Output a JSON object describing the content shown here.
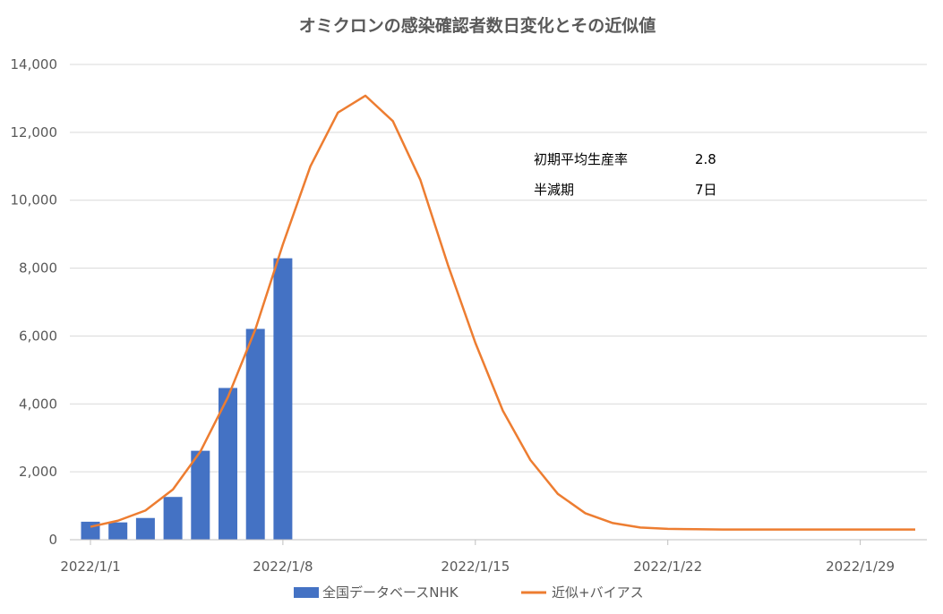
{
  "chart_data": {
    "type": "bar+line",
    "title": "オミクロンの感染確認者数日変化とその近似値",
    "ylim": [
      0,
      14000
    ],
    "y_ticks": [
      "0",
      "2,000",
      "4,000",
      "6,000",
      "8,000",
      "10,000",
      "12,000",
      "14,000"
    ],
    "y_tick_values": [
      0,
      2000,
      4000,
      6000,
      8000,
      10000,
      12000,
      14000
    ],
    "x_tick_labels": [
      "2022/1/1",
      "2022/1/8",
      "2022/1/15",
      "2022/1/22",
      "2022/1/29"
    ],
    "x_tick_dates": [
      "2022-01-01",
      "2022-01-08",
      "2022-01-15",
      "2022-01-22",
      "2022-01-29"
    ],
    "x_range": [
      "2022-01-01",
      "2022-01-31"
    ],
    "grid": true,
    "legend_placement": "bottom",
    "series": [
      {
        "name": "全国データベースNHK",
        "kind": "bar",
        "color": "#4472C4",
        "x": [
          "2022-01-01",
          "2022-01-02",
          "2022-01-03",
          "2022-01-04",
          "2022-01-05",
          "2022-01-06",
          "2022-01-07",
          "2022-01-08"
        ],
        "values": [
          530,
          510,
          640,
          1260,
          2620,
          4470,
          6210,
          8290
        ]
      },
      {
        "name": "近似+バイアス",
        "kind": "line",
        "color": "#ED7D31",
        "x": [
          "2022-01-01",
          "2022-01-02",
          "2022-01-03",
          "2022-01-04",
          "2022-01-05",
          "2022-01-06",
          "2022-01-07",
          "2022-01-08",
          "2022-01-09",
          "2022-01-10",
          "2022-01-11",
          "2022-01-12",
          "2022-01-13",
          "2022-01-14",
          "2022-01-15",
          "2022-01-16",
          "2022-01-17",
          "2022-01-18",
          "2022-01-19",
          "2022-01-20",
          "2022-01-21",
          "2022-01-22",
          "2022-01-23",
          "2022-01-24",
          "2022-01-25",
          "2022-01-26",
          "2022-01-27",
          "2022-01-28",
          "2022-01-29",
          "2022-01-30",
          "2022-01-31"
        ],
        "values": [
          380,
          560,
          860,
          1480,
          2600,
          4200,
          6200,
          8700,
          11000,
          12580,
          13080,
          12330,
          10600,
          8100,
          5800,
          3800,
          2350,
          1350,
          780,
          490,
          360,
          320,
          310,
          300,
          300,
          300,
          300,
          300,
          300,
          300,
          300
        ]
      }
    ],
    "annotations": [
      {
        "label": "初期平均生産率",
        "value": "2.8"
      },
      {
        "label": "半減期",
        "value": "7日"
      }
    ]
  }
}
